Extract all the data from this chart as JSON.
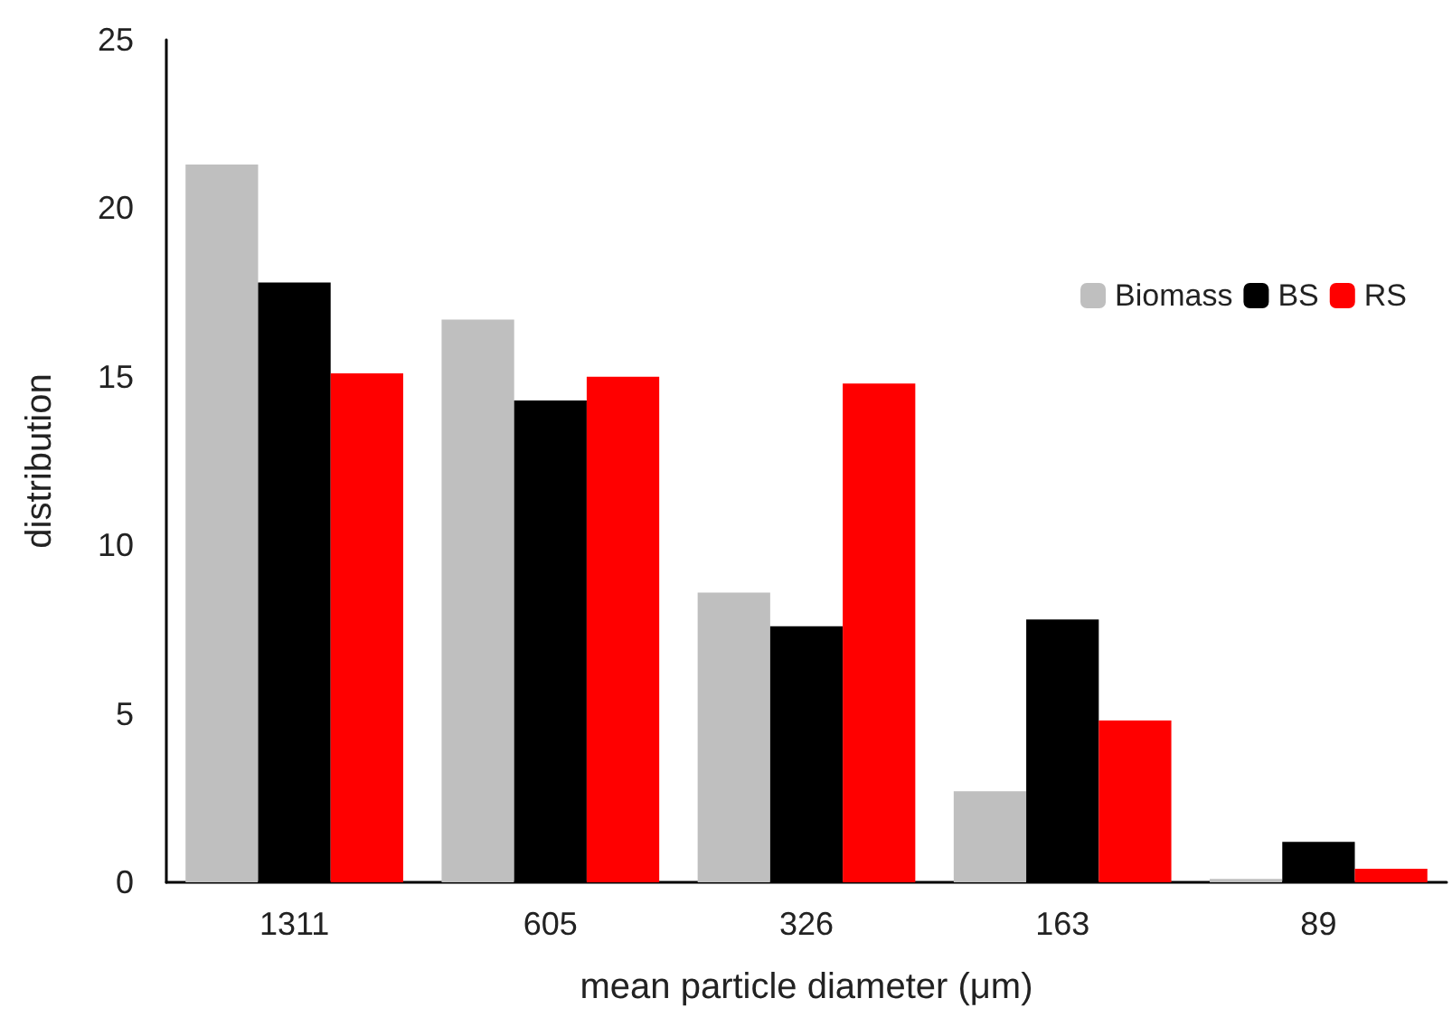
{
  "chart_data": {
    "type": "bar",
    "xlabel": "mean particle diameter (μm)",
    "ylabel": "distribution",
    "categories": [
      "1311",
      "605",
      "326",
      "163",
      "89"
    ],
    "series": [
      {
        "name": "Biomass",
        "color": "#bfbfbf",
        "values": [
          21.3,
          16.7,
          8.6,
          2.7,
          0.1
        ]
      },
      {
        "name": "BS",
        "color": "#000000",
        "values": [
          17.8,
          14.3,
          7.6,
          7.8,
          1.2
        ]
      },
      {
        "name": "RS",
        "color": "#ff0000",
        "values": [
          15.1,
          15.0,
          14.8,
          4.8,
          0.4
        ]
      }
    ],
    "ylim": [
      0,
      25
    ],
    "yticks": [
      0,
      5,
      10,
      15,
      20,
      25
    ],
    "grid": false,
    "legend": "right"
  }
}
